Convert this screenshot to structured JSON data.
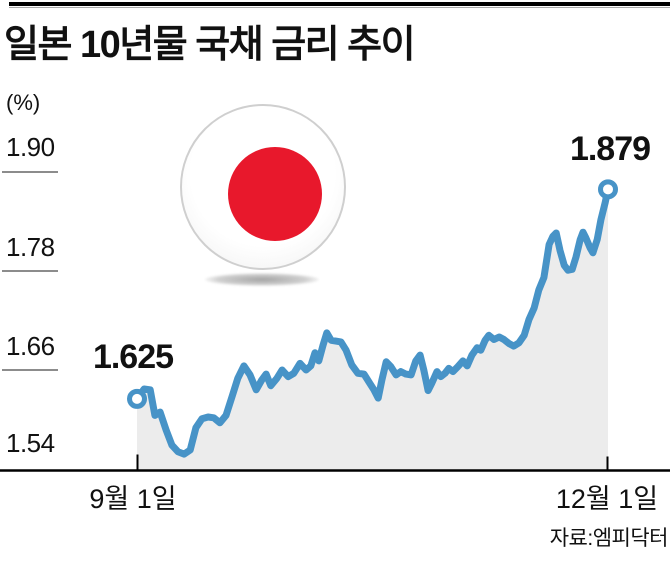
{
  "title": "일본 10년물 국채 금리 추이",
  "unit_label": "(%)",
  "source_label": "자료:엠피닥터",
  "colors": {
    "line": "#4793c7",
    "area_fill": "#ececec",
    "axis": "#000000",
    "y_tick_rule": "#666666",
    "flag_red": "#e8182c",
    "marker_fill": "#ffffff"
  },
  "chart_data": {
    "type": "area",
    "title": "일본 10년물 국채 금리 추이",
    "unit": "%",
    "legend": "none",
    "grid": "off",
    "x_axis": {
      "tick_labels": [
        "9월 1일",
        "12월 1일"
      ]
    },
    "y_axis": {
      "tick_labels": [
        "1.90",
        "1.78",
        "1.66",
        "1.54"
      ],
      "ticks": [
        1.9,
        1.78,
        1.66,
        1.54
      ],
      "ylim": [
        1.54,
        1.9
      ]
    },
    "annotations": {
      "start_value": "1.625",
      "end_value": "1.879"
    },
    "series": [
      {
        "name": "일본 10년물 국채 금리",
        "points": [
          [
            0.0,
            1.625
          ],
          [
            0.015,
            1.637
          ],
          [
            0.028,
            1.636
          ],
          [
            0.038,
            1.605
          ],
          [
            0.049,
            1.609
          ],
          [
            0.062,
            1.587
          ],
          [
            0.074,
            1.569
          ],
          [
            0.087,
            1.561
          ],
          [
            0.1,
            1.558
          ],
          [
            0.113,
            1.563
          ],
          [
            0.125,
            1.59
          ],
          [
            0.138,
            1.601
          ],
          [
            0.151,
            1.603
          ],
          [
            0.163,
            1.602
          ],
          [
            0.176,
            1.596
          ],
          [
            0.189,
            1.605
          ],
          [
            0.202,
            1.628
          ],
          [
            0.214,
            1.65
          ],
          [
            0.227,
            1.665
          ],
          [
            0.24,
            1.654
          ],
          [
            0.253,
            1.636
          ],
          [
            0.265,
            1.648
          ],
          [
            0.274,
            1.655
          ],
          [
            0.284,
            1.641
          ],
          [
            0.297,
            1.65
          ],
          [
            0.308,
            1.66
          ],
          [
            0.321,
            1.652
          ],
          [
            0.333,
            1.656
          ],
          [
            0.346,
            1.668
          ],
          [
            0.359,
            1.66
          ],
          [
            0.369,
            1.665
          ],
          [
            0.378,
            1.681
          ],
          [
            0.386,
            1.671
          ],
          [
            0.395,
            1.69
          ],
          [
            0.403,
            1.705
          ],
          [
            0.412,
            1.696
          ],
          [
            0.422,
            1.695
          ],
          [
            0.433,
            1.694
          ],
          [
            0.444,
            1.684
          ],
          [
            0.456,
            1.666
          ],
          [
            0.469,
            1.656
          ],
          [
            0.482,
            1.655
          ],
          [
            0.493,
            1.645
          ],
          [
            0.503,
            1.636
          ],
          [
            0.512,
            1.626
          ],
          [
            0.52,
            1.648
          ],
          [
            0.529,
            1.67
          ],
          [
            0.539,
            1.664
          ],
          [
            0.55,
            1.654
          ],
          [
            0.56,
            1.658
          ],
          [
            0.571,
            1.655
          ],
          [
            0.582,
            1.654
          ],
          [
            0.592,
            1.671
          ],
          [
            0.601,
            1.678
          ],
          [
            0.609,
            1.66
          ],
          [
            0.618,
            1.635
          ],
          [
            0.626,
            1.644
          ],
          [
            0.637,
            1.658
          ],
          [
            0.645,
            1.652
          ],
          [
            0.654,
            1.656
          ],
          [
            0.662,
            1.662
          ],
          [
            0.671,
            1.658
          ],
          [
            0.681,
            1.664
          ],
          [
            0.692,
            1.671
          ],
          [
            0.701,
            1.665
          ],
          [
            0.711,
            1.678
          ],
          [
            0.722,
            1.687
          ],
          [
            0.73,
            1.684
          ],
          [
            0.739,
            1.696
          ],
          [
            0.747,
            1.702
          ],
          [
            0.758,
            1.697
          ],
          [
            0.769,
            1.7
          ],
          [
            0.779,
            1.697
          ],
          [
            0.79,
            1.692
          ],
          [
            0.8,
            1.689
          ],
          [
            0.811,
            1.693
          ],
          [
            0.822,
            1.702
          ],
          [
            0.832,
            1.721
          ],
          [
            0.843,
            1.735
          ],
          [
            0.853,
            1.757
          ],
          [
            0.864,
            1.772
          ],
          [
            0.875,
            1.812
          ],
          [
            0.883,
            1.822
          ],
          [
            0.89,
            1.826
          ],
          [
            0.898,
            1.805
          ],
          [
            0.907,
            1.787
          ],
          [
            0.915,
            1.781
          ],
          [
            0.924,
            1.782
          ],
          [
            0.932,
            1.797
          ],
          [
            0.941,
            1.818
          ],
          [
            0.947,
            1.827
          ],
          [
            0.953,
            1.82
          ],
          [
            0.962,
            1.808
          ],
          [
            0.968,
            1.802
          ],
          [
            0.977,
            1.818
          ],
          [
            0.985,
            1.842
          ],
          [
            0.994,
            1.863
          ],
          [
            1.0,
            1.879
          ]
        ]
      }
    ]
  }
}
